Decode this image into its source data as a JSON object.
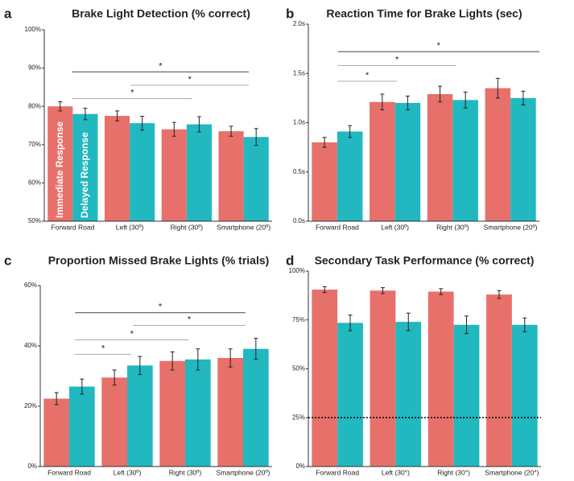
{
  "chart_data": [
    {
      "type": "bar",
      "panel": "a",
      "title": "Brake Light Detection (% correct)",
      "categories": [
        "Forward Road",
        "Left (30º)",
        "Right (30º)",
        "Smartphone (20º)"
      ],
      "series": [
        {
          "name": "Immediate Response",
          "color": "#e8706a",
          "values": [
            80,
            77.5,
            74,
            73.5
          ],
          "errors": [
            1.2,
            1.3,
            1.8,
            1.3
          ]
        },
        {
          "name": "Delayed Response",
          "color": "#21b8c0",
          "values": [
            78,
            75.6,
            75.3,
            72
          ],
          "errors": [
            1.5,
            1.8,
            2,
            2.2
          ]
        }
      ],
      "ylim": [
        50,
        100
      ],
      "yticks": [
        {
          "value": 50,
          "label": "50%"
        },
        {
          "value": 60,
          "label": "60%"
        },
        {
          "value": 70,
          "label": "70%"
        },
        {
          "value": 80,
          "label": "80%"
        },
        {
          "value": 90,
          "label": "90%"
        },
        {
          "value": 100,
          "label": "100%"
        }
      ],
      "annotations": [
        "*",
        "*",
        "*"
      ]
    },
    {
      "type": "bar",
      "panel": "b",
      "title": "Reaction Time for Brake Lights (sec)",
      "categories": [
        "Forward Road",
        "Left (30º)",
        "Right (30º)",
        "Smartphone (20º)"
      ],
      "series": [
        {
          "name": "Immediate Response",
          "color": "#e8706a",
          "values": [
            0.8,
            1.21,
            1.29,
            1.35
          ],
          "errors": [
            0.05,
            0.08,
            0.08,
            0.1
          ]
        },
        {
          "name": "Delayed Response",
          "color": "#21b8c0",
          "values": [
            0.91,
            1.2,
            1.23,
            1.25
          ],
          "errors": [
            0.06,
            0.07,
            0.08,
            0.07
          ]
        }
      ],
      "ylim": [
        0,
        2
      ],
      "yticks": [
        {
          "value": 0,
          "label": "0.0s"
        },
        {
          "value": 0.5,
          "label": "0.5s"
        },
        {
          "value": 1,
          "label": "1.0s"
        },
        {
          "value": 1.5,
          "label": "1.5s"
        },
        {
          "value": 2,
          "label": "2.0s"
        }
      ],
      "annotations": [
        "*",
        "*",
        "*"
      ]
    },
    {
      "type": "bar",
      "panel": "c",
      "title": "Proportion Missed Brake Lights (% trials)",
      "categories": [
        "Forward Road",
        "Left (30º)",
        "Right (30º)",
        "Smartphone (20º)"
      ],
      "series": [
        {
          "name": "Immediate Response",
          "color": "#e8706a",
          "values": [
            22.5,
            29.5,
            35,
            36
          ],
          "errors": [
            2,
            2.5,
            3,
            3
          ]
        },
        {
          "name": "Delayed Response",
          "color": "#21b8c0",
          "values": [
            26.5,
            33.5,
            35.5,
            39
          ],
          "errors": [
            2.5,
            3,
            3.5,
            3.5
          ]
        }
      ],
      "ylim": [
        0,
        60
      ],
      "yticks": [
        {
          "value": 0,
          "label": "0%"
        },
        {
          "value": 20,
          "label": "20%"
        },
        {
          "value": 40,
          "label": "40%"
        },
        {
          "value": 60,
          "label": "60%"
        }
      ],
      "annotations": [
        "*",
        "*",
        "*",
        "*"
      ]
    },
    {
      "type": "bar",
      "panel": "d",
      "title": "Secondary Task Performance (% correct)",
      "categories": [
        "Forward Road",
        "Left (30°)",
        "Right (30°)",
        "Smartphone (20°)"
      ],
      "series": [
        {
          "name": "Immediate Response",
          "color": "#e8706a",
          "values": [
            90.5,
            90,
            89.5,
            88
          ],
          "errors": [
            1.5,
            1.5,
            1.5,
            2
          ]
        },
        {
          "name": "Delayed Response",
          "color": "#21b8c0",
          "values": [
            73.5,
            74,
            72.5,
            72.5
          ],
          "errors": [
            4,
            4.5,
            4.5,
            3.5
          ]
        }
      ],
      "ylim": [
        0,
        100
      ],
      "yticks": [
        {
          "value": 0,
          "label": "0%"
        },
        {
          "value": 25,
          "label": "25%"
        },
        {
          "value": 50,
          "label": "50%"
        },
        {
          "value": 75,
          "label": "75%"
        },
        {
          "value": 100,
          "label": "100%"
        }
      ],
      "reference_line": 25
    }
  ]
}
